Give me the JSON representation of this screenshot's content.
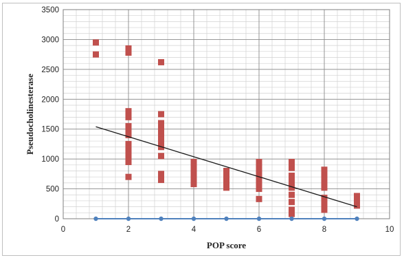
{
  "chart_data": {
    "type": "scatter",
    "title": "",
    "xlabel": "POP score",
    "ylabel": "Pseudocholinesterase",
    "xlim": [
      0,
      10
    ],
    "ylim": [
      0,
      3500
    ],
    "x_ticks": [
      0,
      2,
      4,
      6,
      8,
      10
    ],
    "y_ticks": [
      0,
      500,
      1000,
      1500,
      2000,
      2500,
      3000,
      3500
    ],
    "x_tick_labels": [
      "0",
      "2",
      "4",
      "6",
      "8",
      "10"
    ],
    "y_tick_labels": [
      "0",
      "500",
      "1000",
      "1500",
      "2000",
      "2500",
      "3000",
      "3500"
    ],
    "grid": {
      "major": true,
      "minor": true
    },
    "legend": "none",
    "series": [
      {
        "kind": "markers",
        "color": "#c0504d",
        "marker": "square",
        "points": [
          [
            1,
            2950
          ],
          [
            1,
            2750
          ],
          [
            2,
            2850
          ],
          [
            2,
            2780
          ],
          [
            2,
            1800
          ],
          [
            2,
            1700
          ],
          [
            2,
            1550
          ],
          [
            2,
            1480
          ],
          [
            2,
            1400
          ],
          [
            2,
            1250
          ],
          [
            2,
            1150
          ],
          [
            2,
            1050
          ],
          [
            2,
            950
          ],
          [
            2,
            700
          ],
          [
            3,
            2620
          ],
          [
            3,
            1750
          ],
          [
            3,
            1600
          ],
          [
            3,
            1500
          ],
          [
            3,
            1400
          ],
          [
            3,
            1300
          ],
          [
            3,
            1200
          ],
          [
            3,
            1050
          ],
          [
            3,
            750
          ],
          [
            3,
            650
          ],
          [
            4,
            950
          ],
          [
            4,
            850
          ],
          [
            4,
            750
          ],
          [
            4,
            650
          ],
          [
            4,
            580
          ],
          [
            5,
            800
          ],
          [
            5,
            720
          ],
          [
            5,
            650
          ],
          [
            5,
            580
          ],
          [
            5,
            520
          ],
          [
            6,
            950
          ],
          [
            6,
            880
          ],
          [
            6,
            800
          ],
          [
            6,
            720
          ],
          [
            6,
            650
          ],
          [
            6,
            580
          ],
          [
            6,
            500
          ],
          [
            6,
            330
          ],
          [
            7,
            950
          ],
          [
            7,
            850
          ],
          [
            7,
            720
          ],
          [
            7,
            620
          ],
          [
            7,
            520
          ],
          [
            7,
            400
          ],
          [
            7,
            280
          ],
          [
            7,
            150
          ],
          [
            7,
            80
          ],
          [
            8,
            820
          ],
          [
            8,
            720
          ],
          [
            8,
            620
          ],
          [
            8,
            520
          ],
          [
            8,
            350
          ],
          [
            8,
            250
          ],
          [
            8,
            150
          ],
          [
            9,
            380
          ],
          [
            9,
            300
          ],
          [
            9,
            220
          ]
        ]
      },
      {
        "kind": "trendline",
        "color": "#1a1a1a",
        "points": [
          [
            1,
            1540
          ],
          [
            9,
            200
          ]
        ]
      },
      {
        "kind": "line-markers",
        "color": "#4f81bd",
        "marker": "circle",
        "points": [
          [
            1,
            0
          ],
          [
            2,
            0
          ],
          [
            3,
            0
          ],
          [
            4,
            0
          ],
          [
            5,
            0
          ],
          [
            6,
            0
          ],
          [
            7,
            0
          ],
          [
            8,
            0
          ],
          [
            9,
            0
          ]
        ]
      }
    ]
  }
}
